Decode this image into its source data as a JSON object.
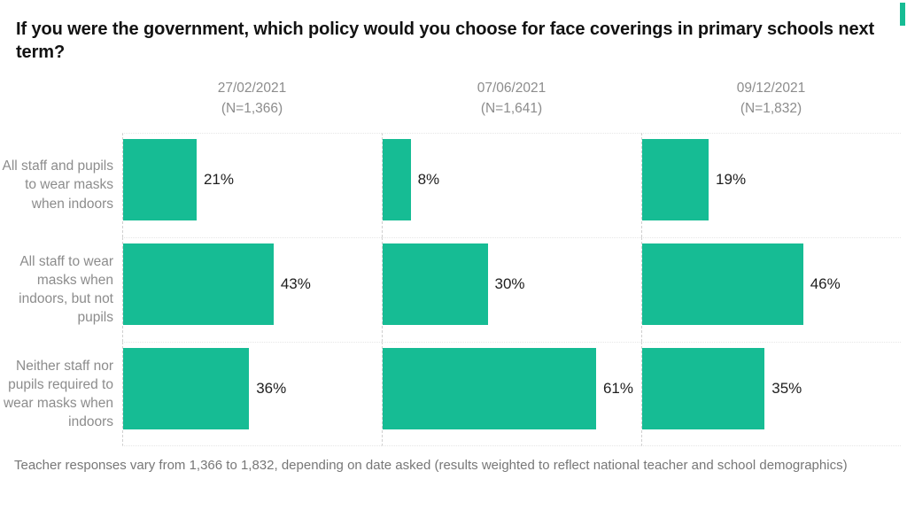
{
  "title": "If you were the government, which policy would you choose for face coverings in primary schools next term?",
  "footnote": "Teacher responses vary from 1,366 to 1,832, depending on date asked (results weighted to reflect national teacher and school demographics)",
  "brand": {
    "accent_color": "#16BC94"
  },
  "colors": {
    "bar": "#16BC94",
    "header_gray": "#8C8C8C",
    "value_text": "#1E1E1E",
    "footnote_gray": "#777777",
    "axis_dash": "#CFCFCF"
  },
  "chart_data": {
    "type": "bar",
    "orientation": "horizontal",
    "unit": "%",
    "value_range": [
      0,
      65
    ],
    "grid": "dashed-vertical-axis-per-facet",
    "legend_position": "none",
    "categories": [
      "All staff and pupils to wear masks when indoors",
      "All staff to wear masks when indoors, but not pupils",
      "Neither staff nor pupils required to wear masks when indoors"
    ],
    "groups": [
      {
        "date": "27/02/2021",
        "sample": "(N=1,366)",
        "values": [
          21,
          43,
          36
        ],
        "labels": [
          "21%",
          "43%",
          "36%"
        ]
      },
      {
        "date": "07/06/2021",
        "sample": "(N=1,641)",
        "values": [
          8,
          30,
          61
        ],
        "labels": [
          "8%",
          "30%",
          "61%"
        ]
      },
      {
        "date": "09/12/2021",
        "sample": "(N=1,832)",
        "values": [
          19,
          46,
          35
        ],
        "labels": [
          "19%",
          "46%",
          "35%"
        ]
      }
    ]
  }
}
